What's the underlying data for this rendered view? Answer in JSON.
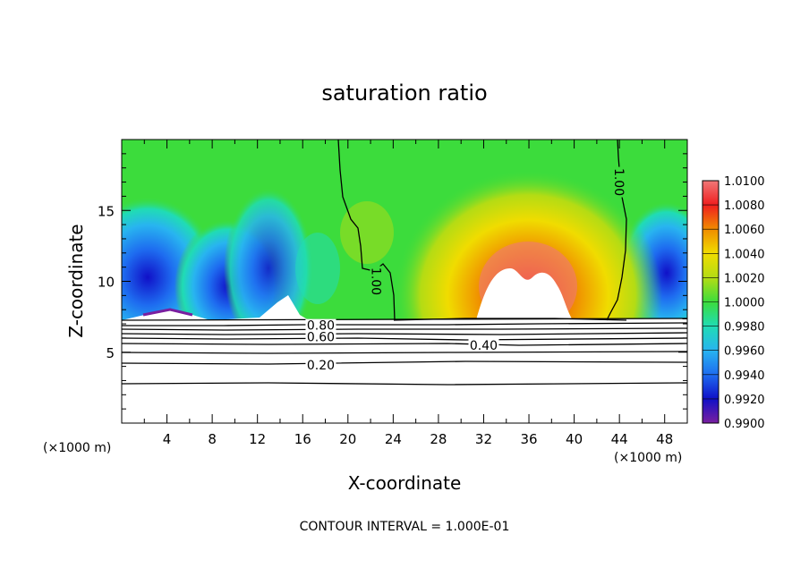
{
  "chart_data": {
    "type": "contour",
    "title": "saturation ratio",
    "xlabel": "X-coordinate",
    "ylabel": "Z-coordinate",
    "x_unit_left": "(×1000 m)",
    "x_unit_right": "(×1000 m)",
    "xlim": [
      0,
      50
    ],
    "ylim": [
      0,
      20
    ],
    "x_ticks": [
      4,
      8,
      12,
      16,
      20,
      24,
      28,
      32,
      36,
      40,
      44,
      48
    ],
    "y_ticks": [
      5,
      10,
      15
    ],
    "footer": "CONTOUR INTERVAL = 1.000E-01",
    "colorbar": {
      "levels": [
        0.99,
        0.992,
        0.994,
        0.996,
        0.998,
        1.0,
        1.002,
        1.004,
        1.006,
        1.008,
        1.01
      ],
      "labels": [
        "0.9900",
        "0.9920",
        "0.9940",
        "0.9960",
        "0.9980",
        "1.0000",
        "1.0020",
        "1.0040",
        "1.0060",
        "1.0080",
        "1.0100"
      ],
      "colors": [
        "#7a1fa0",
        "#1010c8",
        "#1e6cf0",
        "#28b4f0",
        "#20dcb4",
        "#3cdc3c",
        "#b4dc14",
        "#f0dc00",
        "#f08c00",
        "#f01e1e",
        "#f07878"
      ]
    },
    "contour_labels": [
      {
        "text": "1.00",
        "x": 22.5,
        "z": 10.0
      },
      {
        "text": "1.00",
        "x": 44.0,
        "z": 17.0
      },
      {
        "text": "0.80",
        "x": 17.6,
        "z": 6.9
      },
      {
        "text": "0.60",
        "x": 17.6,
        "z": 6.1
      },
      {
        "text": "0.40",
        "x": 32.0,
        "z": 5.5
      },
      {
        "text": "0.20",
        "x": 17.6,
        "z": 4.1
      }
    ]
  }
}
